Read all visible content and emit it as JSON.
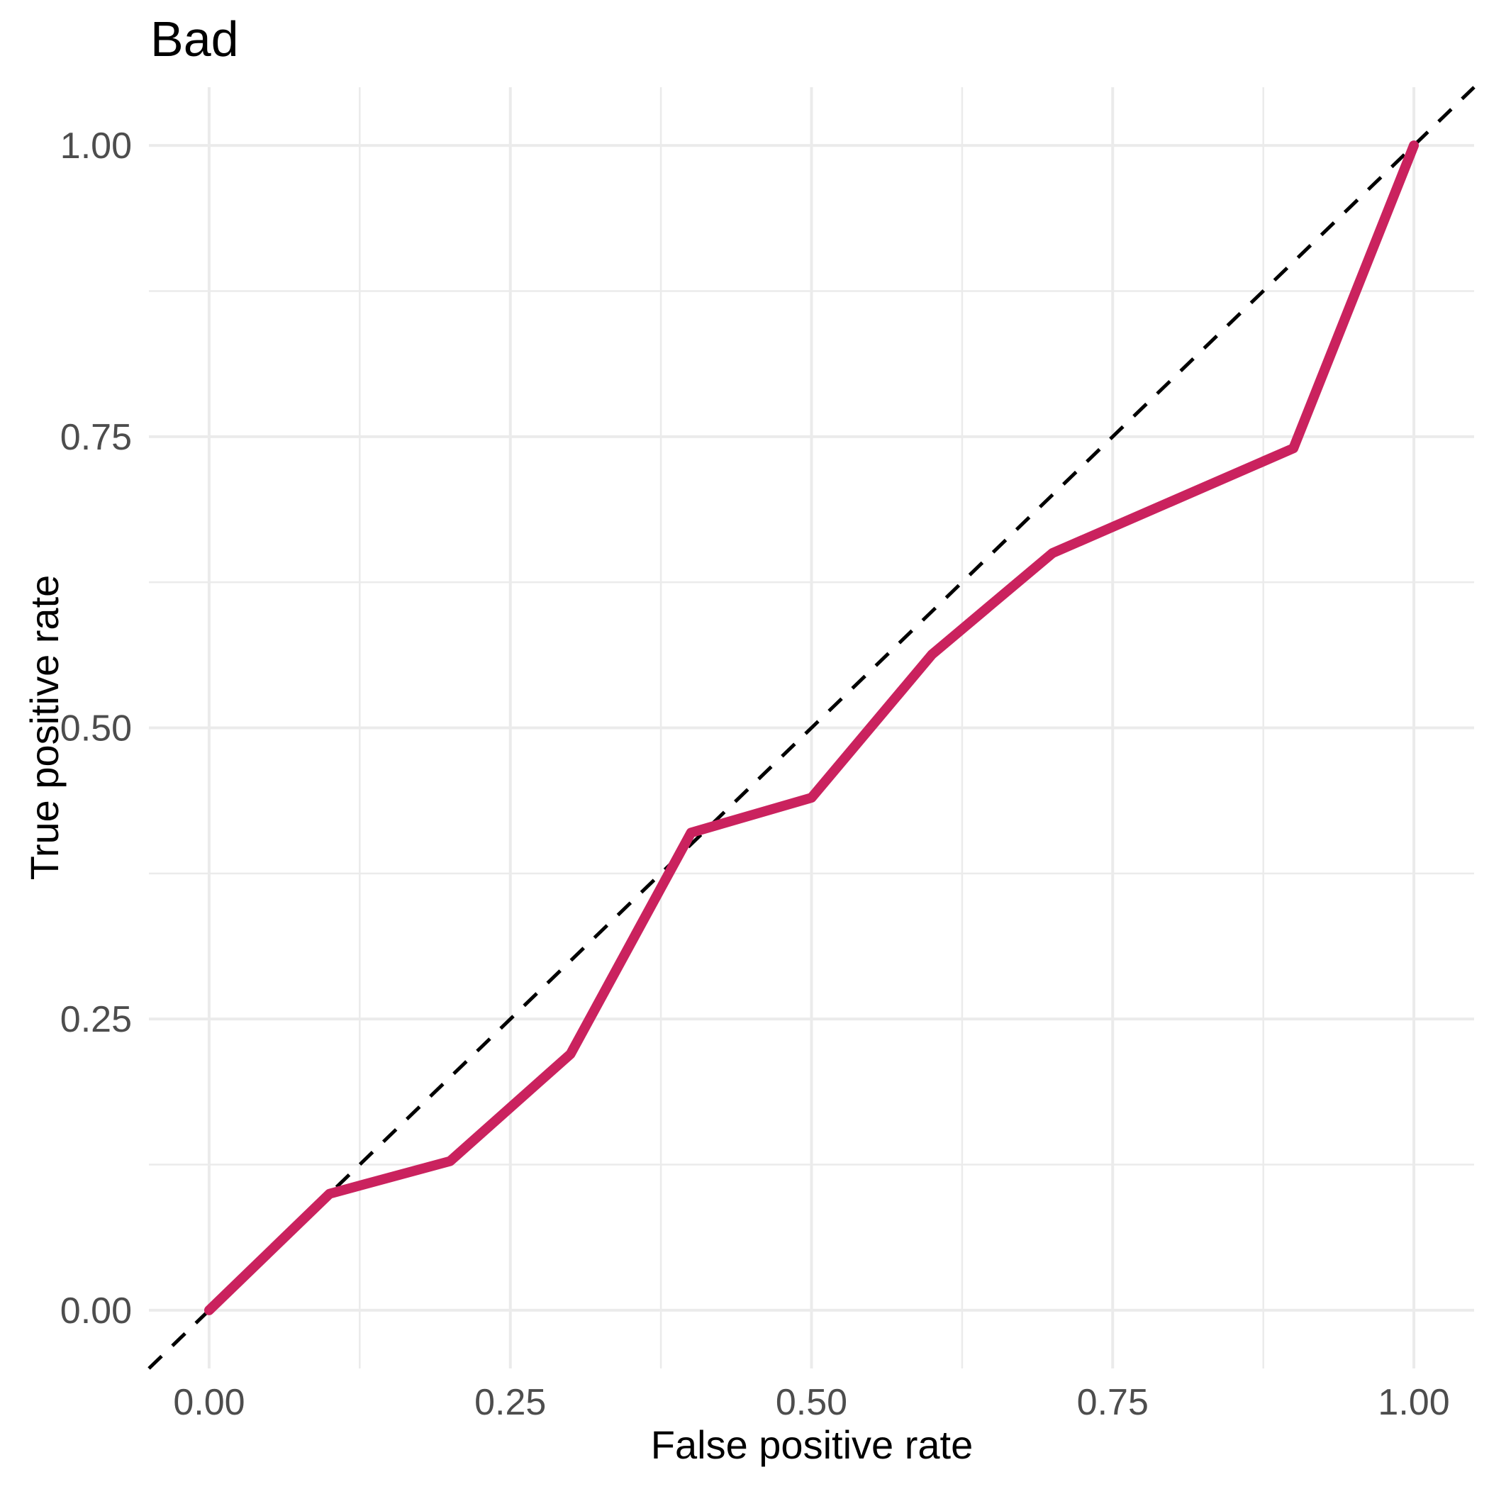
{
  "header": {
    "title": "Bad"
  },
  "axes": {
    "x": {
      "label": "False positive rate",
      "tick_labels": [
        "0.00",
        "0.25",
        "0.50",
        "0.75",
        "1.00"
      ]
    },
    "y": {
      "label": "True positive rate",
      "tick_labels": [
        "0.00",
        "0.25",
        "0.50",
        "0.75",
        "1.00"
      ]
    }
  },
  "colors": {
    "background": "#FFFFFF",
    "roc_line": "#CA225E",
    "diagonal_line": "#000000",
    "gridline": "#EBEBEB",
    "tick_text": "#4D4D4D",
    "axis_title_text": "#000000",
    "title_text": "#000000"
  },
  "chart_data": {
    "type": "line",
    "title": "Bad",
    "xlabel": "False positive rate",
    "ylabel": "True positive rate",
    "xlim": [
      -0.05,
      1.05
    ],
    "ylim": [
      -0.05,
      1.05
    ],
    "x_ticks": [
      0,
      0.25,
      0.5,
      0.75,
      1
    ],
    "y_ticks": [
      0,
      0.25,
      0.5,
      0.75,
      1
    ],
    "x_minor_ticks": [
      0.125,
      0.375,
      0.625,
      0.875
    ],
    "y_minor_ticks": [
      0.125,
      0.375,
      0.625,
      0.875
    ],
    "grid": "on",
    "legend": "none",
    "series": [
      {
        "name": "roc-curve",
        "style": "solid",
        "color": "#CA225E",
        "width": 14,
        "x": [
          0.0,
          0.1,
          0.2,
          0.3,
          0.4,
          0.5,
          0.6,
          0.7,
          0.8,
          0.9,
          1.0
        ],
        "y": [
          0.0,
          0.1,
          0.128,
          0.22,
          0.41,
          0.44,
          0.563,
          0.65,
          0.695,
          0.74,
          1.0
        ]
      },
      {
        "name": "chance-diagonal",
        "style": "dashed",
        "color": "#000000",
        "width": 5,
        "x": [
          -0.05,
          1.05
        ],
        "y": [
          -0.05,
          1.05
        ]
      }
    ]
  }
}
